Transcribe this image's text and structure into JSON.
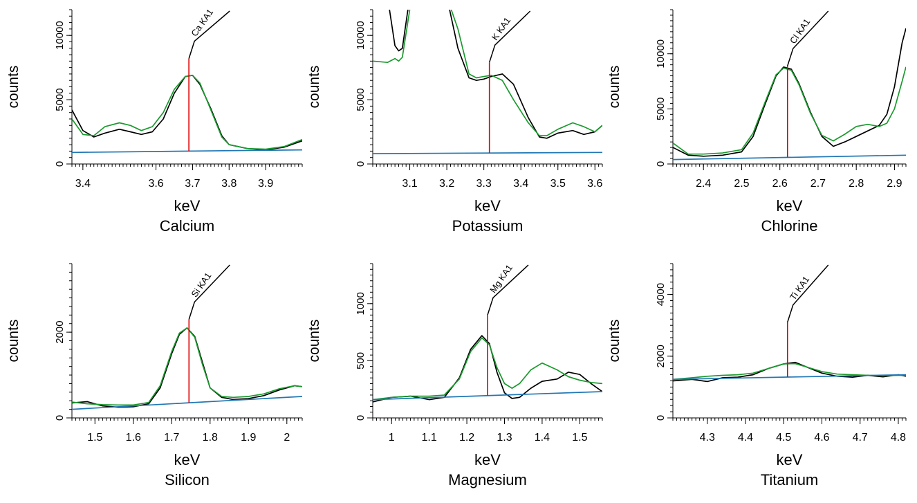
{
  "chart_data": [
    {
      "type": "line",
      "title": "Calcium",
      "xlabel": "keV",
      "ylabel": "counts",
      "xlim": [
        3.37,
        4.0
      ],
      "ylim": [
        0,
        12000
      ],
      "xticks": [
        3.4,
        3.6,
        3.7,
        3.8,
        3.9
      ],
      "yticks": [
        0,
        5000,
        10000
      ],
      "line_marker": {
        "x": 3.69,
        "y": 8200,
        "label": "Ca KA1"
      },
      "series": [
        {
          "color": "#000000",
          "x": [
            3.37,
            3.4,
            3.43,
            3.46,
            3.5,
            3.53,
            3.56,
            3.59,
            3.62,
            3.65,
            3.68,
            3.7,
            3.72,
            3.75,
            3.78,
            3.8,
            3.85,
            3.9,
            3.95,
            4.0
          ],
          "y": [
            4200,
            2600,
            2100,
            2400,
            2700,
            2500,
            2300,
            2500,
            3500,
            5500,
            6800,
            6900,
            6200,
            4300,
            2200,
            1500,
            1200,
            1100,
            1300,
            1800
          ]
        },
        {
          "color": "#1a9a2e",
          "x": [
            3.37,
            3.4,
            3.43,
            3.46,
            3.5,
            3.53,
            3.56,
            3.59,
            3.62,
            3.65,
            3.68,
            3.7,
            3.72,
            3.75,
            3.78,
            3.8,
            3.85,
            3.9,
            3.95,
            4.0
          ],
          "y": [
            3500,
            2300,
            2200,
            2900,
            3200,
            3000,
            2600,
            2900,
            4000,
            5800,
            6800,
            6900,
            6300,
            4200,
            2100,
            1500,
            1200,
            1150,
            1350,
            1900
          ]
        },
        {
          "color": "#1f77b4",
          "x": [
            3.37,
            4.0
          ],
          "y": [
            900,
            1100
          ]
        }
      ]
    },
    {
      "type": "line",
      "title": "Potassium",
      "xlabel": "keV",
      "ylabel": "counts",
      "xlim": [
        3.0,
        3.62
      ],
      "ylim": [
        0,
        12000
      ],
      "xticks": [
        3.1,
        3.2,
        3.3,
        3.4,
        3.5,
        3.6
      ],
      "yticks": [
        0,
        5000,
        10000
      ],
      "line_marker": {
        "x": 3.315,
        "y": 7900,
        "label": "K KA1"
      },
      "series": [
        {
          "color": "#000000",
          "x": [
            3.0,
            3.04,
            3.06,
            3.07,
            3.08,
            3.1,
            3.12,
            3.2,
            3.23,
            3.26,
            3.28,
            3.3,
            3.32,
            3.35,
            3.38,
            3.42,
            3.45,
            3.47,
            3.5,
            3.54,
            3.57,
            3.6,
            3.62
          ],
          "y": [
            13000,
            13000,
            9200,
            8800,
            9000,
            13000,
            13000,
            13000,
            9000,
            6700,
            6500,
            6600,
            6800,
            7000,
            6200,
            3600,
            2100,
            2000,
            2400,
            2600,
            2300,
            2500,
            3000
          ]
        },
        {
          "color": "#1a9a2e",
          "x": [
            3.0,
            3.04,
            3.06,
            3.07,
            3.08,
            3.1,
            3.12,
            3.2,
            3.23,
            3.26,
            3.28,
            3.3,
            3.32,
            3.35,
            3.38,
            3.42,
            3.45,
            3.47,
            3.5,
            3.54,
            3.57,
            3.6,
            3.62
          ],
          "y": [
            8000,
            7900,
            8200,
            8000,
            8300,
            12000,
            13000,
            13000,
            10500,
            7000,
            6700,
            6800,
            6900,
            6500,
            5000,
            3200,
            2200,
            2200,
            2700,
            3200,
            2900,
            2500,
            3000
          ]
        },
        {
          "color": "#1f77b4",
          "x": [
            3.0,
            3.62
          ],
          "y": [
            800,
            900
          ]
        }
      ]
    },
    {
      "type": "line",
      "title": "Chlorine",
      "xlabel": "keV",
      "ylabel": "counts",
      "xlim": [
        2.32,
        2.93
      ],
      "ylim": [
        0,
        14000
      ],
      "xticks": [
        2.4,
        2.5,
        2.6,
        2.7,
        2.8,
        2.9
      ],
      "yticks": [
        0,
        5000,
        10000
      ],
      "line_marker": {
        "x": 2.62,
        "y": 8900,
        "label": "Cl KA1"
      },
      "series": [
        {
          "color": "#000000",
          "x": [
            2.32,
            2.36,
            2.4,
            2.45,
            2.5,
            2.53,
            2.56,
            2.59,
            2.61,
            2.63,
            2.65,
            2.68,
            2.71,
            2.74,
            2.77,
            2.8,
            2.83,
            2.86,
            2.88,
            2.9,
            2.92,
            2.93
          ],
          "y": [
            1500,
            800,
            700,
            800,
            1100,
            2500,
            5300,
            8000,
            8800,
            8600,
            7300,
            4700,
            2500,
            1600,
            2000,
            2500,
            3000,
            3500,
            4500,
            7000,
            11000,
            12300
          ]
        },
        {
          "color": "#1a9a2e",
          "x": [
            2.32,
            2.36,
            2.4,
            2.45,
            2.5,
            2.53,
            2.56,
            2.59,
            2.61,
            2.63,
            2.65,
            2.68,
            2.71,
            2.74,
            2.77,
            2.8,
            2.83,
            2.86,
            2.88,
            2.9,
            2.92,
            2.93
          ],
          "y": [
            1900,
            900,
            900,
            1000,
            1300,
            2800,
            5500,
            8100,
            8700,
            8500,
            7200,
            4600,
            2600,
            2100,
            2700,
            3400,
            3600,
            3400,
            3700,
            5000,
            7500,
            8800
          ]
        },
        {
          "color": "#1f77b4",
          "x": [
            2.32,
            2.93
          ],
          "y": [
            400,
            800
          ]
        }
      ]
    },
    {
      "type": "line",
      "title": "Silicon",
      "xlabel": "keV",
      "ylabel": "counts",
      "xlim": [
        1.44,
        2.04
      ],
      "ylim": [
        0,
        3600
      ],
      "xticks": [
        1.5,
        1.6,
        1.7,
        1.8,
        1.9,
        2
      ],
      "yticks": [
        0,
        2000
      ],
      "line_marker": {
        "x": 1.745,
        "y": 2300,
        "label": "Si KA1"
      },
      "series": [
        {
          "color": "#000000",
          "x": [
            1.44,
            1.48,
            1.52,
            1.56,
            1.6,
            1.64,
            1.67,
            1.7,
            1.72,
            1.74,
            1.76,
            1.78,
            1.8,
            1.83,
            1.86,
            1.9,
            1.94,
            1.98,
            2.02,
            2.04
          ],
          "y": [
            350,
            380,
            280,
            250,
            260,
            330,
            700,
            1500,
            1950,
            2100,
            1900,
            1300,
            700,
            480,
            430,
            450,
            520,
            650,
            750,
            730
          ]
        },
        {
          "color": "#1a9a2e",
          "x": [
            1.44,
            1.48,
            1.52,
            1.56,
            1.6,
            1.64,
            1.67,
            1.7,
            1.72,
            1.74,
            1.76,
            1.78,
            1.8,
            1.83,
            1.86,
            1.9,
            1.94,
            1.98,
            2.02,
            2.04
          ],
          "y": [
            370,
            330,
            310,
            300,
            300,
            360,
            750,
            1550,
            1980,
            2100,
            1880,
            1250,
            700,
            500,
            480,
            500,
            560,
            680,
            750,
            730
          ]
        },
        {
          "color": "#1f77b4",
          "x": [
            1.44,
            2.04
          ],
          "y": [
            200,
            500
          ]
        }
      ]
    },
    {
      "type": "line",
      "title": "Magnesium",
      "xlabel": "keV",
      "ylabel": "counts",
      "xlim": [
        0.95,
        1.56
      ],
      "ylim": [
        0,
        1350
      ],
      "xticks": [
        1,
        1.1,
        1.2,
        1.3,
        1.4,
        1.5
      ],
      "yticks": [
        0,
        500,
        1000
      ],
      "line_marker": {
        "x": 1.255,
        "y": 900,
        "label": "Mg KA1"
      },
      "series": [
        {
          "color": "#000000",
          "x": [
            0.95,
            1.0,
            1.05,
            1.1,
            1.14,
            1.18,
            1.21,
            1.24,
            1.26,
            1.28,
            1.3,
            1.32,
            1.34,
            1.37,
            1.4,
            1.44,
            1.47,
            1.5,
            1.53,
            1.56
          ],
          "y": [
            140,
            180,
            190,
            160,
            180,
            350,
            600,
            720,
            650,
            400,
            220,
            170,
            180,
            260,
            320,
            340,
            400,
            380,
            300,
            230
          ]
        },
        {
          "color": "#1a9a2e",
          "x": [
            0.95,
            1.0,
            1.05,
            1.1,
            1.14,
            1.18,
            1.21,
            1.24,
            1.26,
            1.28,
            1.3,
            1.32,
            1.34,
            1.37,
            1.4,
            1.44,
            1.47,
            1.5,
            1.53,
            1.56
          ],
          "y": [
            160,
            180,
            190,
            190,
            200,
            340,
            580,
            700,
            640,
            440,
            300,
            260,
            300,
            420,
            480,
            420,
            360,
            330,
            310,
            300
          ]
        },
        {
          "color": "#1f77b4",
          "x": [
            0.95,
            1.56
          ],
          "y": [
            160,
            230
          ]
        }
      ]
    },
    {
      "type": "line",
      "title": "Titanium",
      "xlabel": "keV",
      "ylabel": "counts",
      "xlim": [
        4.21,
        4.82
      ],
      "ylim": [
        0,
        5000
      ],
      "xticks": [
        4.3,
        4.4,
        4.5,
        4.6,
        4.7,
        4.8
      ],
      "yticks": [
        0,
        2000,
        4000
      ],
      "line_marker": {
        "x": 4.51,
        "y": 3100,
        "label": "Ti KA1"
      },
      "series": [
        {
          "color": "#000000",
          "x": [
            4.21,
            4.26,
            4.3,
            4.34,
            4.38,
            4.42,
            4.46,
            4.5,
            4.53,
            4.56,
            4.6,
            4.64,
            4.68,
            4.72,
            4.76,
            4.8,
            4.82
          ],
          "y": [
            1200,
            1250,
            1180,
            1300,
            1320,
            1400,
            1600,
            1750,
            1800,
            1650,
            1450,
            1350,
            1320,
            1380,
            1330,
            1400,
            1350
          ]
        },
        {
          "color": "#1a9a2e",
          "x": [
            4.21,
            4.26,
            4.3,
            4.34,
            4.38,
            4.42,
            4.46,
            4.5,
            4.53,
            4.56,
            4.6,
            4.64,
            4.68,
            4.72,
            4.76,
            4.8,
            4.82
          ],
          "y": [
            1250,
            1300,
            1350,
            1380,
            1400,
            1450,
            1600,
            1750,
            1760,
            1650,
            1500,
            1420,
            1400,
            1380,
            1370,
            1380,
            1380
          ]
        },
        {
          "color": "#1f77b4",
          "x": [
            4.21,
            4.82
          ],
          "y": [
            1250,
            1400
          ]
        }
      ]
    }
  ]
}
